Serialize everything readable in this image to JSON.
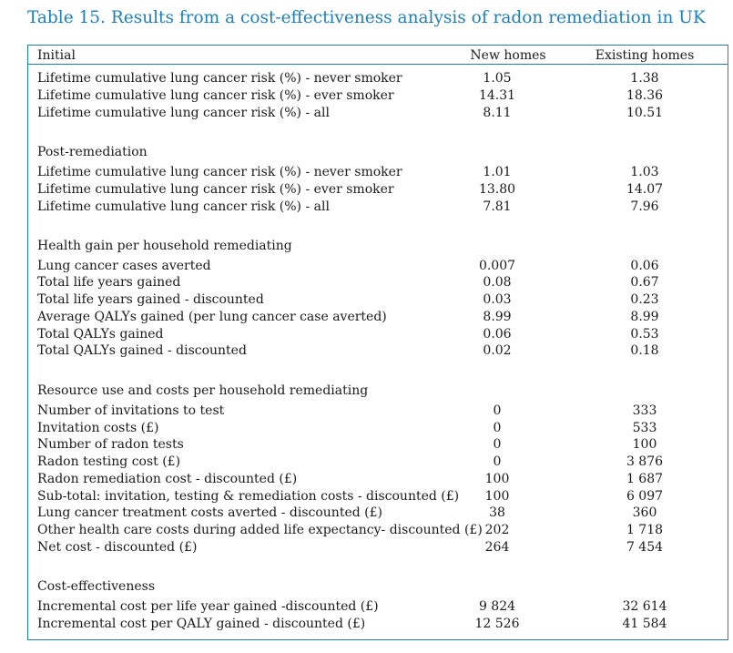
{
  "title": "Table 15. Results from a cost-effectiveness analysis of radon remediation in UK",
  "header": {
    "col0": "Initial",
    "col1": "New homes",
    "col2": "Existing homes"
  },
  "initial": [
    {
      "label": "Lifetime cumulative lung cancer risk (%) - never smoker",
      "new": "1.05",
      "existing": "1.38"
    },
    {
      "label": "Lifetime cumulative lung cancer risk (%) - ever smoker",
      "new": "14.31",
      "existing": "18.36"
    },
    {
      "label": "Lifetime cumulative lung cancer risk (%) - all",
      "new": "8.11",
      "existing": "10.51"
    }
  ],
  "post": {
    "heading": "Post-remediation",
    "rows": [
      {
        "label": "Lifetime cumulative lung cancer risk (%) - never smoker",
        "new": "1.01",
        "existing": "1.03"
      },
      {
        "label": "Lifetime cumulative lung cancer risk (%) - ever smoker",
        "new": "13.80",
        "existing": "14.07"
      },
      {
        "label": "Lifetime cumulative lung cancer risk (%) - all",
        "new": "7.81",
        "existing": "7.96"
      }
    ]
  },
  "health": {
    "heading": "Health gain per household remediating",
    "rows": [
      {
        "label": "Lung cancer cases averted",
        "new": "0.007",
        "existing": "0.06"
      },
      {
        "label": "Total life years gained",
        "new": "0.08",
        "existing": "0.67"
      },
      {
        "label": "Total life years gained - discounted",
        "new": "0.03",
        "existing": "0.23"
      },
      {
        "label": "Average QALYs gained (per lung cancer case averted)",
        "new": "8.99",
        "existing": "8.99"
      },
      {
        "label": "Total QALYs gained",
        "new": "0.06",
        "existing": "0.53"
      },
      {
        "label": "Total QALYs gained - discounted",
        "new": "0.02",
        "existing": "0.18"
      }
    ]
  },
  "resource": {
    "heading": "Resource use and costs per household remediating",
    "rows": [
      {
        "label": "Number of invitations to test",
        "new": "0",
        "existing": "333"
      },
      {
        "label": "Invitation costs (£)",
        "new": "0",
        "existing": "533"
      },
      {
        "label": "Number of radon tests",
        "new": "0",
        "existing": "100"
      },
      {
        "label": "Radon testing cost (£)",
        "new": "0",
        "existing": "3 876"
      },
      {
        "label": "Radon remediation cost - discounted (£)",
        "new": "100",
        "existing": "1 687"
      },
      {
        "label": "Sub-total: invitation, testing & remediation costs - discounted (£)",
        "new": "100",
        "existing": "6 097"
      },
      {
        "label": "Lung cancer treatment costs averted - discounted (£)",
        "new": "38",
        "existing": "360"
      },
      {
        "label": "Other health care costs during added life expectancy- discounted (£)",
        "new": "202",
        "existing": "1 718"
      },
      {
        "label": "Net cost - discounted (£)",
        "new": "264",
        "existing": "7 454"
      }
    ]
  },
  "ce": {
    "heading": "Cost-effectiveness",
    "rows": [
      {
        "label": "Incremental cost per life year gained -discounted (£)",
        "new": "9 824",
        "existing": "32 614"
      },
      {
        "label": "Incremental cost per QALY gained - discounted (£)",
        "new": "12 526",
        "existing": "41 584"
      }
    ]
  },
  "colors": {
    "accent": "#1f7fb6",
    "text": "#1a1a1a"
  }
}
